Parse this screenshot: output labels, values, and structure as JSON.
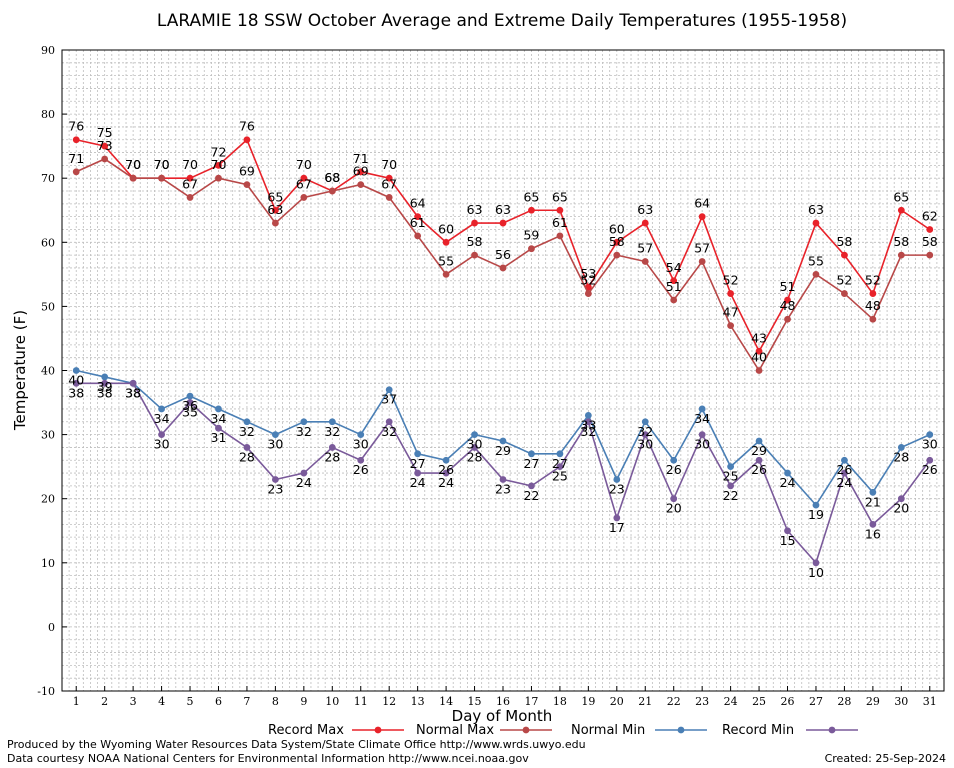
{
  "chart_data": {
    "type": "line",
    "title": "LARAMIE 18 SSW October Average and Extreme Daily Temperatures (1955-1958)",
    "xlabel": "Day of Month",
    "ylabel": "Temperature (F)",
    "ylim": [
      -10,
      90
    ],
    "y_ticks": [
      "-10",
      "0",
      "10",
      "20",
      "30",
      "40",
      "50",
      "60",
      "70",
      "80",
      "90"
    ],
    "xlim": [
      0.5,
      31.5
    ],
    "x": [
      "1",
      "2",
      "3",
      "4",
      "5",
      "6",
      "7",
      "8",
      "9",
      "10",
      "11",
      "12",
      "13",
      "14",
      "15",
      "16",
      "17",
      "18",
      "19",
      "20",
      "21",
      "22",
      "23",
      "24",
      "25",
      "26",
      "27",
      "28",
      "29",
      "30",
      "31"
    ],
    "grid": true,
    "legend_position": "bottom",
    "series": [
      {
        "name": "Record Max",
        "color": "#e8222a",
        "values": [
          76,
          75,
          70,
          70,
          70,
          72,
          76,
          65,
          70,
          68,
          71,
          70,
          64,
          60,
          63,
          63,
          65,
          65,
          53,
          60,
          63,
          54,
          64,
          52,
          43,
          51,
          63,
          58,
          52,
          65,
          62
        ]
      },
      {
        "name": "Normal Max",
        "color": "#b84848",
        "values": [
          71,
          73,
          70,
          70,
          67,
          70,
          69,
          63,
          67,
          68,
          69,
          67,
          61,
          55,
          58,
          56,
          59,
          61,
          52,
          58,
          57,
          51,
          57,
          47,
          40,
          48,
          55,
          52,
          48,
          58,
          58
        ]
      },
      {
        "name": "Normal Min",
        "color": "#4a7fb5",
        "values": [
          40,
          39,
          38,
          34,
          36,
          34,
          32,
          30,
          32,
          32,
          30,
          37,
          27,
          26,
          30,
          29,
          27,
          27,
          33,
          23,
          32,
          26,
          34,
          25,
          29,
          24,
          19,
          26,
          21,
          28,
          30
        ]
      },
      {
        "name": "Record Min",
        "color": "#7a5a9a",
        "values": [
          38,
          38,
          38,
          30,
          35,
          31,
          28,
          23,
          24,
          28,
          26,
          32,
          24,
          24,
          28,
          23,
          22,
          25,
          32,
          17,
          30,
          20,
          30,
          22,
          26,
          15,
          10,
          24,
          16,
          20,
          26
        ]
      }
    ]
  },
  "footer": {
    "left_line1": "Produced by the Wyoming Water Resources Data System/State Climate Office http://www.wrds.uwyo.edu",
    "left_line2": "Data courtesy NOAA National Centers for Environmental Information http://www.ncei.noaa.gov",
    "right_line2": "Created:  25-Sep-2024"
  }
}
